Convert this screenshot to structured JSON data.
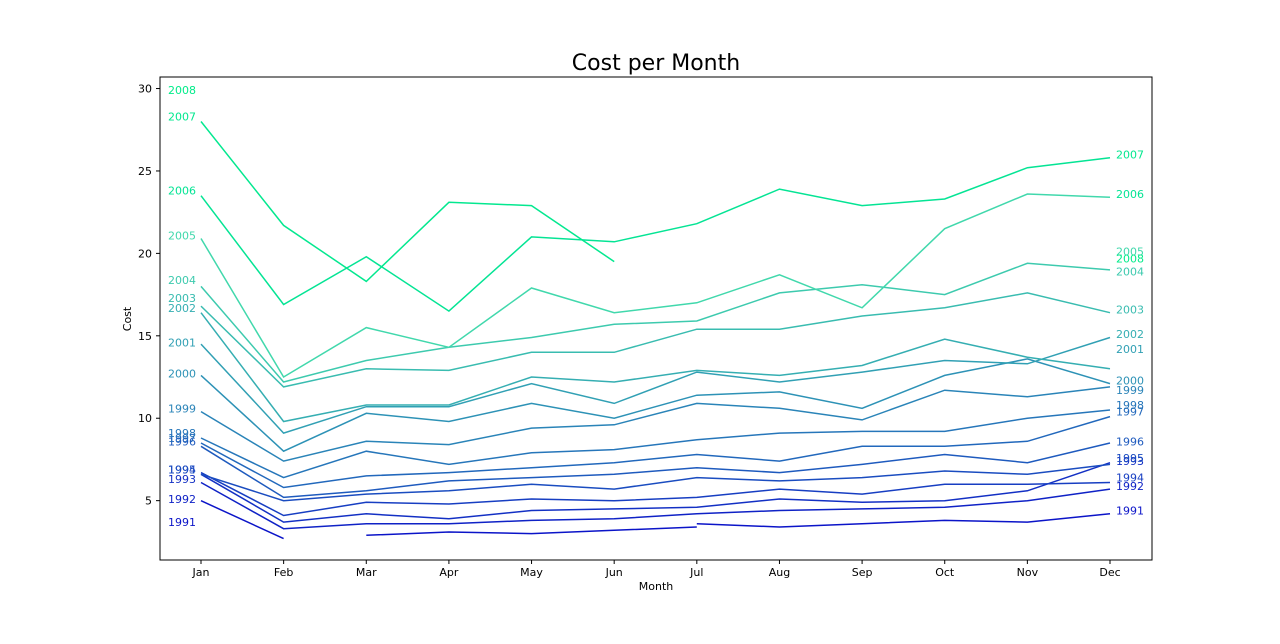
{
  "chart_data": {
    "type": "line",
    "title": "Cost per Month",
    "xlabel": "Month",
    "ylabel": "Cost",
    "categories": [
      "Jan",
      "Feb",
      "Mar",
      "Apr",
      "May",
      "Jun",
      "Jul",
      "Aug",
      "Sep",
      "Oct",
      "Nov",
      "Dec"
    ],
    "ylim": [
      1.4,
      30.7
    ],
    "yticks": [
      5,
      10,
      15,
      20,
      25,
      30
    ],
    "grid": false,
    "legend": "none",
    "series": [
      {
        "name": "1991",
        "color": "#0b14c8",
        "values": [
          5.0,
          2.7,
          null,
          null,
          null,
          null,
          3.6,
          3.4,
          3.6,
          3.8,
          3.7,
          4.2
        ],
        "left_label": [
          3.7
        ],
        "right_label": 4.4
      },
      {
        "name": "1991",
        "color": "#0b14c8",
        "values": [
          null,
          null,
          2.9,
          3.1,
          3.0,
          3.2,
          3.4,
          null,
          null,
          null,
          null,
          null
        ],
        "left_label": null,
        "right_label": null
      },
      {
        "name": "1992",
        "color": "#0f22c6",
        "values": [
          6.1,
          3.3,
          3.6,
          3.6,
          3.8,
          3.9,
          4.2,
          4.4,
          4.5,
          4.6,
          5.0,
          5.7
        ],
        "left_label": 5.1,
        "right_label": 5.9
      },
      {
        "name": "1993",
        "color": "#1330c4",
        "values": [
          6.6,
          3.7,
          4.2,
          3.9,
          4.4,
          4.5,
          4.6,
          5.1,
          4.9,
          5.0,
          5.6,
          7.3
        ],
        "left_label": 6.3,
        "right_label": 7.4
      },
      {
        "name": "1994",
        "color": "#173ec2",
        "values": [
          6.7,
          4.1,
          4.9,
          4.8,
          5.1,
          5.0,
          5.2,
          5.7,
          5.4,
          6.0,
          6.0,
          6.1
        ],
        "left_label": 6.9,
        "right_label": 6.4
      },
      {
        "name": "1995",
        "color": "#1a4cc0",
        "values": [
          6.6,
          5.0,
          5.4,
          5.6,
          6.0,
          5.7,
          6.4,
          6.2,
          6.4,
          6.8,
          6.6,
          7.2
        ],
        "left_label": 6.9,
        "right_label": 7.6
      },
      {
        "name": "1996",
        "color": "#1e5abe",
        "values": [
          8.3,
          5.2,
          5.6,
          6.2,
          6.4,
          6.6,
          7.0,
          6.7,
          7.2,
          7.8,
          7.3,
          8.5
        ],
        "left_label": 8.6,
        "right_label": 8.6
      },
      {
        "name": "1997",
        "color": "#2268bc",
        "values": [
          8.5,
          5.8,
          6.5,
          6.7,
          7.0,
          7.3,
          7.8,
          7.4,
          8.3,
          8.3,
          8.6,
          10.1
        ],
        "left_label": 8.8,
        "right_label": 10.4
      },
      {
        "name": "1998",
        "color": "#2676ba",
        "values": [
          8.8,
          6.4,
          8.0,
          7.2,
          7.9,
          8.1,
          8.7,
          9.1,
          9.2,
          9.2,
          10.0,
          10.5
        ],
        "left_label": 9.1,
        "right_label": 10.8
      },
      {
        "name": "1999",
        "color": "#2a84b8",
        "values": [
          10.4,
          7.4,
          8.6,
          8.4,
          9.4,
          9.6,
          10.9,
          10.6,
          9.9,
          11.7,
          11.3,
          11.9
        ],
        "left_label": 10.6,
        "right_label": 11.7
      },
      {
        "name": "2000",
        "color": "#2d92b6",
        "values": [
          12.6,
          8.0,
          10.3,
          9.8,
          10.9,
          10.0,
          11.4,
          11.6,
          10.6,
          12.6,
          13.6,
          12.1
        ],
        "left_label": 12.7,
        "right_label": 12.3
      },
      {
        "name": "2001",
        "color": "#31a0b4",
        "values": [
          14.5,
          9.1,
          10.7,
          10.7,
          12.1,
          10.9,
          12.8,
          12.2,
          12.8,
          13.5,
          13.3,
          14.9
        ],
        "left_label": 14.6,
        "right_label": 14.2
      },
      {
        "name": "2002",
        "color": "#35aeb2",
        "values": [
          16.4,
          9.8,
          10.8,
          10.8,
          12.5,
          12.2,
          12.9,
          12.6,
          13.2,
          14.8,
          13.7,
          13.0
        ],
        "left_label": 16.7,
        "right_label": 15.1
      },
      {
        "name": "2003",
        "color": "#39bcb0",
        "values": [
          16.8,
          11.9,
          13.0,
          12.9,
          14.0,
          14.0,
          15.4,
          15.4,
          16.2,
          16.7,
          17.6,
          16.4
        ],
        "left_label": 17.3,
        "right_label": 16.6
      },
      {
        "name": "2004",
        "color": "#3dcaae",
        "values": [
          18.0,
          12.2,
          13.5,
          14.3,
          14.9,
          15.7,
          15.9,
          17.6,
          18.1,
          17.5,
          19.4,
          19.0
        ],
        "left_label": 18.4,
        "right_label": 18.9
      },
      {
        "name": "2005",
        "color": "#41d8ac",
        "values": [
          20.9,
          12.5,
          15.5,
          14.3,
          17.9,
          16.4,
          17.0,
          18.7,
          16.7,
          21.5,
          23.6,
          23.4
        ],
        "left_label": 21.1,
        "right_label": 20.1
      },
      {
        "name": "2006",
        "color": "#04e494",
        "values": [
          23.5,
          16.9,
          19.8,
          16.5,
          21.0,
          20.7,
          21.8,
          23.9,
          22.9,
          23.3,
          25.2,
          25.8
        ],
        "left_label": 23.8,
        "right_label": 23.6
      },
      {
        "name": "2007",
        "color": "#03e88f",
        "values": [
          28.0,
          21.7,
          18.3,
          23.1,
          22.9,
          19.5,
          null,
          null,
          null,
          null,
          null,
          null
        ],
        "left_label": 28.3,
        "right_label": 26.0
      },
      {
        "name": "2008",
        "color": "#02ec8a",
        "values": [
          29.7,
          null,
          null,
          null,
          null,
          null,
          null,
          null,
          null,
          null,
          null,
          null
        ],
        "left_label": 29.9,
        "right_label": 19.7
      }
    ]
  }
}
